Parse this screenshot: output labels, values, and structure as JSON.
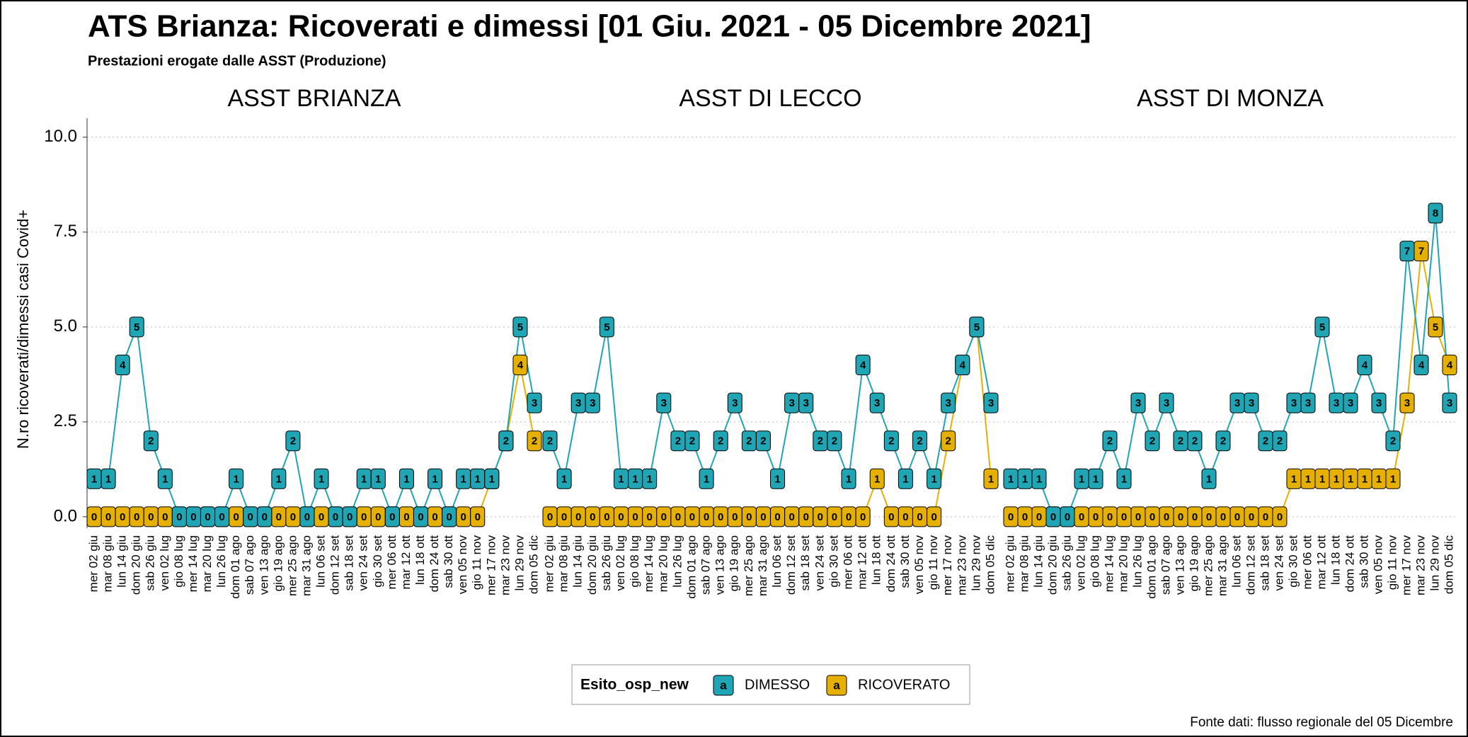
{
  "title": "ATS Brianza: Ricoverati e dimessi [01 Giu. 2021 - 05 Dicembre 2021]",
  "subtitle": "Prestazioni erogate dalle ASST (Produzione)",
  "y_label": "N.ro ricoverati/dimessi casi Covid+",
  "legend_title": "Esito_osp_new",
  "legend_key": "a",
  "source": "Fonte dati: flusso regionale del 05 Dicembre",
  "chart_data": [
    {
      "type": "line",
      "title": "ASST BRIANZA",
      "categories": [
        "mer 02 giu",
        "mar 08 giu",
        "lun 14 giu",
        "dom 20 giu",
        "sab 26 giu",
        "ven 02 lug",
        "gio 08 lug",
        "mer 14 lug",
        "mar 20 lug",
        "lun 26 lug",
        "dom 01 ago",
        "sab 07 ago",
        "ven 13 ago",
        "gio 19 ago",
        "mer 25 ago",
        "mar 31 ago",
        "lun 06 set",
        "dom 12 set",
        "sab 18 set",
        "ven 24 set",
        "gio 30 set",
        "mer 06 ott",
        "mar 12 ott",
        "lun 18 ott",
        "dom 24 ott",
        "sab 30 ott",
        "ven 05 nov",
        "gio 11 nov",
        "mer 17 nov",
        "mar 23 nov",
        "lun 29 nov",
        "dom 05 dic"
      ],
      "series": [
        {
          "name": "DIMESSO",
          "color": "#1fa5b3",
          "values": [
            1,
            1,
            4,
            5,
            2,
            1,
            0,
            0,
            0,
            0,
            1,
            0,
            0,
            1,
            2,
            0,
            1,
            0,
            0,
            1,
            1,
            0,
            1,
            0,
            1,
            0,
            1,
            1,
            1,
            2,
            5,
            3
          ]
        },
        {
          "name": "RICOVERATO",
          "color": "#e6b000",
          "values": [
            0,
            0,
            0,
            0,
            0,
            0,
            0,
            0,
            0,
            0,
            0,
            0,
            0,
            0,
            0,
            0,
            0,
            0,
            0,
            0,
            0,
            0,
            0,
            0,
            0,
            0,
            0,
            0,
            1,
            2,
            4,
            2
          ]
        }
      ],
      "ylim": [
        -0.3,
        10.5
      ],
      "yticks": [
        {
          "value": 0,
          "label": "0.0"
        },
        2.5,
        {
          "value": 5,
          "label": "5.0"
        },
        7.5,
        {
          "value": 10,
          "label": "10.0"
        }
      ],
      "grid": true
    },
    {
      "type": "line",
      "title": "ASST DI LECCO",
      "categories": [
        "mer 02 giu",
        "mar 08 giu",
        "lun 14 giu",
        "dom 20 giu",
        "sab 26 giu",
        "ven 02 lug",
        "gio 08 lug",
        "mer 14 lug",
        "mar 20 lug",
        "lun 26 lug",
        "dom 01 ago",
        "sab 07 ago",
        "ven 13 ago",
        "gio 19 ago",
        "mer 25 ago",
        "mar 31 ago",
        "lun 06 set",
        "dom 12 set",
        "sab 18 set",
        "ven 24 set",
        "gio 30 set",
        "mer 06 ott",
        "mar 12 ott",
        "lun 18 ott",
        "dom 24 ott",
        "sab 30 ott",
        "ven 05 nov",
        "gio 11 nov",
        "mer 17 nov",
        "mar 23 nov",
        "lun 29 nov",
        "dom 05 dic"
      ],
      "series": [
        {
          "name": "DIMESSO",
          "color": "#1fa5b3",
          "values": [
            2,
            1,
            3,
            3,
            5,
            1,
            1,
            1,
            3,
            2,
            2,
            1,
            2,
            3,
            2,
            2,
            1,
            3,
            3,
            2,
            2,
            1,
            4,
            3,
            2,
            1,
            2,
            1,
            3,
            4,
            5,
            3
          ]
        },
        {
          "name": "RICOVERATO",
          "color": "#e6b000",
          "values": [
            0,
            0,
            0,
            0,
            0,
            0,
            0,
            0,
            0,
            0,
            0,
            0,
            0,
            0,
            0,
            0,
            0,
            0,
            0,
            0,
            0,
            0,
            0,
            1,
            0,
            0,
            0,
            0,
            2,
            4,
            5,
            1
          ]
        }
      ],
      "ylim": [
        -0.3,
        10.5
      ],
      "yticks": [
        {
          "value": 0,
          "label": "0.0"
        },
        2.5,
        {
          "value": 5,
          "label": "5.0"
        },
        7.5,
        {
          "value": 10,
          "label": "10.0"
        }
      ],
      "grid": true
    },
    {
      "type": "line",
      "title": "ASST DI MONZA",
      "categories": [
        "mer 02 giu",
        "mar 08 giu",
        "lun 14 giu",
        "dom 20 giu",
        "sab 26 giu",
        "ven 02 lug",
        "gio 08 lug",
        "mer 14 lug",
        "mar 20 lug",
        "lun 26 lug",
        "dom 01 ago",
        "sab 07 ago",
        "ven 13 ago",
        "gio 19 ago",
        "mer 25 ago",
        "mar 31 ago",
        "lun 06 set",
        "dom 12 set",
        "sab 18 set",
        "ven 24 set",
        "gio 30 set",
        "mer 06 ott",
        "mar 12 ott",
        "lun 18 ott",
        "dom 24 ott",
        "sab 30 ott",
        "ven 05 nov",
        "gio 11 nov",
        "mer 17 nov",
        "mar 23 nov",
        "lun 29 nov",
        "dom 05 dic"
      ],
      "series": [
        {
          "name": "DIMESSO",
          "color": "#1fa5b3",
          "values": [
            1,
            1,
            1,
            0,
            0,
            1,
            1,
            2,
            1,
            3,
            2,
            3,
            2,
            2,
            1,
            2,
            3,
            3,
            2,
            2,
            3,
            3,
            5,
            3,
            3,
            4,
            3,
            2,
            7,
            4,
            8,
            3
          ]
        },
        {
          "name": "RICOVERATO",
          "color": "#e6b000",
          "values": [
            0,
            0,
            0,
            0,
            0,
            0,
            0,
            0,
            0,
            0,
            0,
            0,
            0,
            0,
            0,
            0,
            0,
            0,
            0,
            0,
            1,
            1,
            1,
            1,
            1,
            1,
            1,
            1,
            3,
            7,
            5,
            4
          ]
        }
      ],
      "ylim": [
        -0.3,
        10.5
      ],
      "yticks": [
        {
          "value": 0,
          "label": "0.0"
        },
        2.5,
        {
          "value": 5,
          "label": "5.0"
        },
        7.5,
        {
          "value": 10,
          "label": "10.0"
        }
      ],
      "grid": true
    }
  ]
}
